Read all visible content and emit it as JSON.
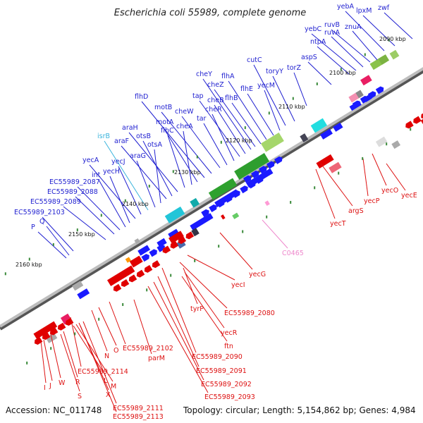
{
  "title": "Escherichia coli 55989, complete genome",
  "accession": "Accession: NC_011748",
  "summary": "Topology: circular; Length: 5,154,862 bp; Genes: 4,984",
  "colors": {
    "upper_label": "#1f1fd0",
    "lower_label": "#dd1111",
    "isrB_label": "#3ab4dc",
    "C0465_label": "#ee88cc",
    "backbone_dark": "#555555",
    "backbone_light": "#bbbbbb",
    "gc_dot": "#3a8a3a"
  },
  "kbp_marks": [
    "2090 kbp",
    "2100 kbp",
    "2110 kbp",
    "2120 kbp",
    "2130 kbp",
    "2140 kbp",
    "2150 kbp",
    "2160 kbp"
  ],
  "upper_genes": [
    "zwf",
    "lpxM",
    "yebA",
    "znuA",
    "ruvB",
    "ruvA",
    "yebC",
    "ntpA",
    "aspS",
    "torZ",
    "toryY",
    "cutC",
    "yecM",
    "flhE",
    "flhA",
    "flhB",
    "cheZ",
    "cheY",
    "cheB",
    "tap",
    "cheR",
    "tar",
    "cheW",
    "motB",
    "flhD",
    "motA",
    "cheA",
    "flhC",
    "araH",
    "otsB",
    "araF",
    "otsA",
    "araG",
    "isrB",
    "yecJ",
    "yecA",
    "yecH",
    "int",
    "EC55989_2087",
    "EC55989_2088",
    "EC55989_2089",
    "EC55989_2103",
    "Q",
    "P"
  ],
  "lower_genes": [
    "yecE",
    "yecO",
    "yecP",
    "argS",
    "yecT",
    "C0465",
    "yecG",
    "yecI",
    "EC55989_2080",
    "tyrP",
    "yecR",
    "ftn",
    "EC55989_2090",
    "EC55989_2091",
    "EC55989_2092",
    "EC55989_2093",
    "EC55989_2102",
    "parM",
    "N",
    "O",
    "EC55989_2114",
    "M",
    "L",
    "X",
    "R",
    "S",
    "W",
    "J",
    "I",
    "EC55989_2111",
    "EC55989_2113"
  ]
}
